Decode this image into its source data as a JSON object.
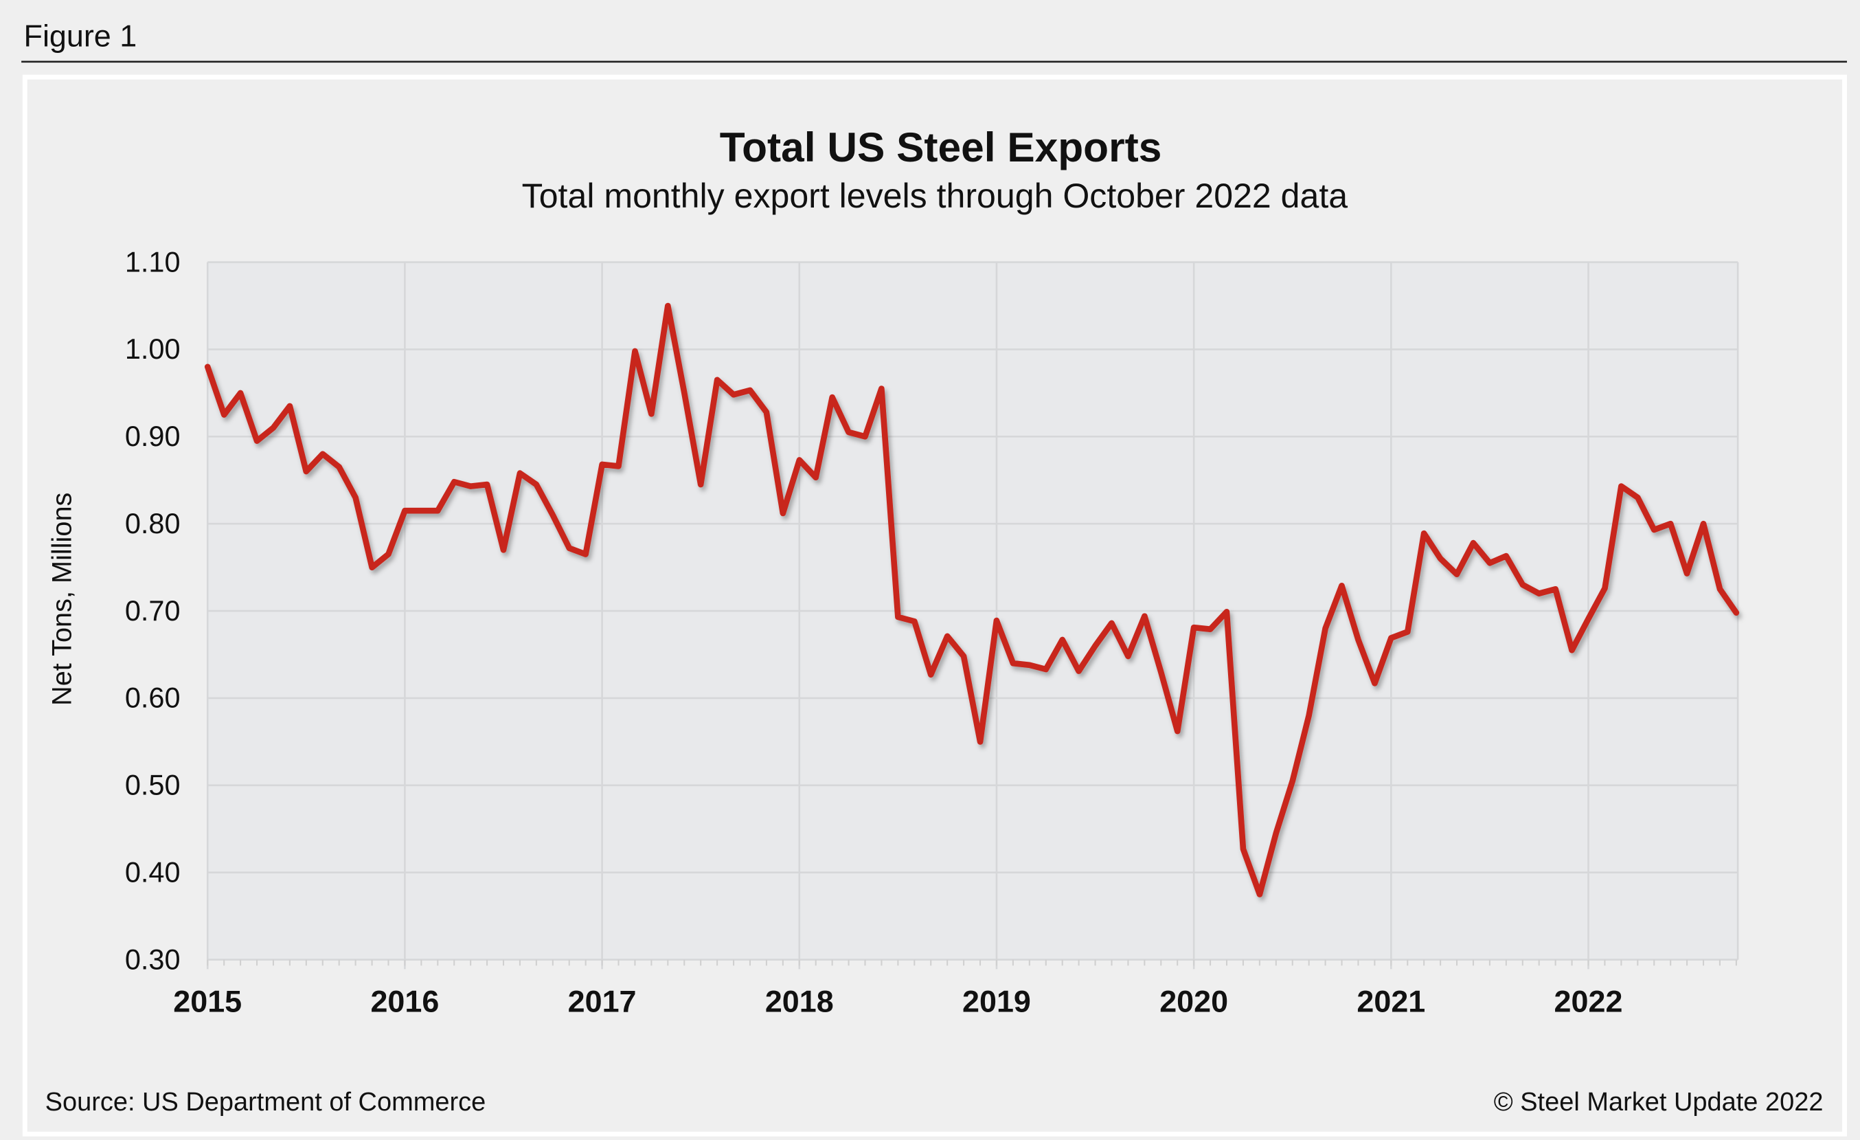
{
  "figure_label": "Figure 1",
  "chart_data": {
    "type": "line",
    "title": "Total US Steel Exports",
    "subtitle": "Total monthly export levels through October 2022 data",
    "xlabel": "",
    "ylabel": "Net Tons, Millions",
    "ylim": [
      0.3,
      1.1
    ],
    "yticks": [
      "0.30",
      "0.40",
      "0.50",
      "0.60",
      "0.70",
      "0.80",
      "0.90",
      "1.00",
      "1.10"
    ],
    "xticks": [
      "2015",
      "2016",
      "2017",
      "2018",
      "2019",
      "2020",
      "2021",
      "2022"
    ],
    "x_start": "2015-01",
    "x_end": "2022-10",
    "frequency": "monthly",
    "grid": true,
    "series_color": "#c8281e",
    "series": [
      {
        "values": [
          0.98,
          0.925,
          0.95,
          0.895,
          0.91,
          0.935,
          0.86,
          0.88,
          0.865,
          0.83,
          0.75,
          0.765,
          0.815,
          0.815,
          0.815,
          0.848,
          0.843,
          0.845,
          0.77,
          0.858,
          0.845,
          0.81,
          0.772,
          0.765,
          0.868,
          0.866,
          0.998,
          0.926,
          1.05,
          0.95,
          0.845,
          0.965,
          0.948,
          0.953,
          0.928,
          0.812,
          0.873,
          0.853,
          0.945,
          0.905,
          0.9,
          0.955,
          0.693,
          0.688,
          0.627,
          0.671,
          0.648,
          0.55,
          0.689,
          0.64,
          0.638,
          0.633,
          0.667,
          0.631,
          0.66,
          0.686,
          0.648,
          0.694,
          0.63,
          0.562,
          0.681,
          0.679,
          0.699,
          0.427,
          0.375,
          0.445,
          0.505,
          0.58,
          0.68,
          0.729,
          0.667,
          0.617,
          0.669,
          0.676,
          0.789,
          0.76,
          0.742,
          0.778,
          0.755,
          0.763,
          0.73,
          0.72,
          0.725,
          0.655,
          0.691,
          0.726,
          0.843,
          0.83,
          0.793,
          0.8,
          0.743,
          0.8,
          0.725,
          0.698
        ]
      }
    ]
  },
  "footer": {
    "source": "Source: US Department of Commerce",
    "copyright": "© Steel Market Update 2022"
  }
}
